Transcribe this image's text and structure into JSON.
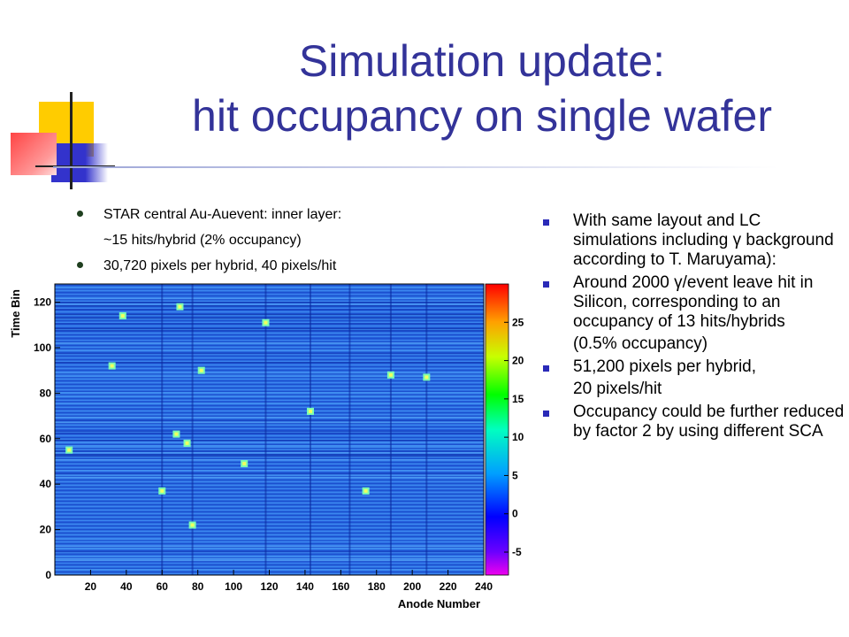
{
  "slide": {
    "title_line1": "Simulation update:",
    "title_line2": "hit occupancy on single wafer",
    "left_bullets": [
      {
        "text": "STAR central Au-Auevent: inner layer:",
        "bullet": true
      },
      {
        "text": "~15 hits/hybrid (2% occupancy)",
        "bullet": false
      },
      {
        "text": "30,720 pixels per hybrid, 40 pixels/hit",
        "bullet": true
      }
    ],
    "right_bullets": [
      {
        "text": "With same layout and LC simulations including γ background according to T. Maruyama):",
        "bullet": true
      },
      {
        "text": "Around 2000 γ/event leave hit in Silicon, corresponding to an occupancy of 13 hits/hybrids",
        "bullet": true
      },
      {
        "text": "(0.5% occupancy)",
        "bullet": false
      },
      {
        "text": "51,200 pixels per hybrid,",
        "bullet": true
      },
      {
        "text": "20 pixels/hit",
        "bullet": false
      },
      {
        "text": "Occupancy could be further reduced by factor 2 by using different SCA",
        "bullet": true
      }
    ]
  },
  "chart_data": {
    "type": "heatmap",
    "xlabel": "Anode Number",
    "ylabel": "Time Bin",
    "xlim": [
      0,
      240
    ],
    "ylim": [
      0,
      128
    ],
    "x_ticks": [
      20,
      40,
      60,
      80,
      100,
      120,
      140,
      160,
      180,
      200,
      220,
      240
    ],
    "y_ticks": [
      0,
      20,
      40,
      60,
      80,
      100,
      120
    ],
    "colorbar_ticks": [
      -5,
      0,
      5,
      10,
      15,
      20,
      25
    ],
    "colorbar_range": [
      -8,
      30
    ],
    "hits": [
      {
        "x": 38,
        "y": 114
      },
      {
        "x": 70,
        "y": 118
      },
      {
        "x": 118,
        "y": 111
      },
      {
        "x": 32,
        "y": 92
      },
      {
        "x": 82,
        "y": 90
      },
      {
        "x": 188,
        "y": 88
      },
      {
        "x": 208,
        "y": 87
      },
      {
        "x": 143,
        "y": 72
      },
      {
        "x": 68,
        "y": 62
      },
      {
        "x": 74,
        "y": 58
      },
      {
        "x": 8,
        "y": 55
      },
      {
        "x": 106,
        "y": 49
      },
      {
        "x": 60,
        "y": 37
      },
      {
        "x": 174,
        "y": 37
      },
      {
        "x": 77,
        "y": 22
      }
    ],
    "streak_columns": [
      60,
      77,
      118,
      143,
      165,
      188,
      208
    ]
  }
}
